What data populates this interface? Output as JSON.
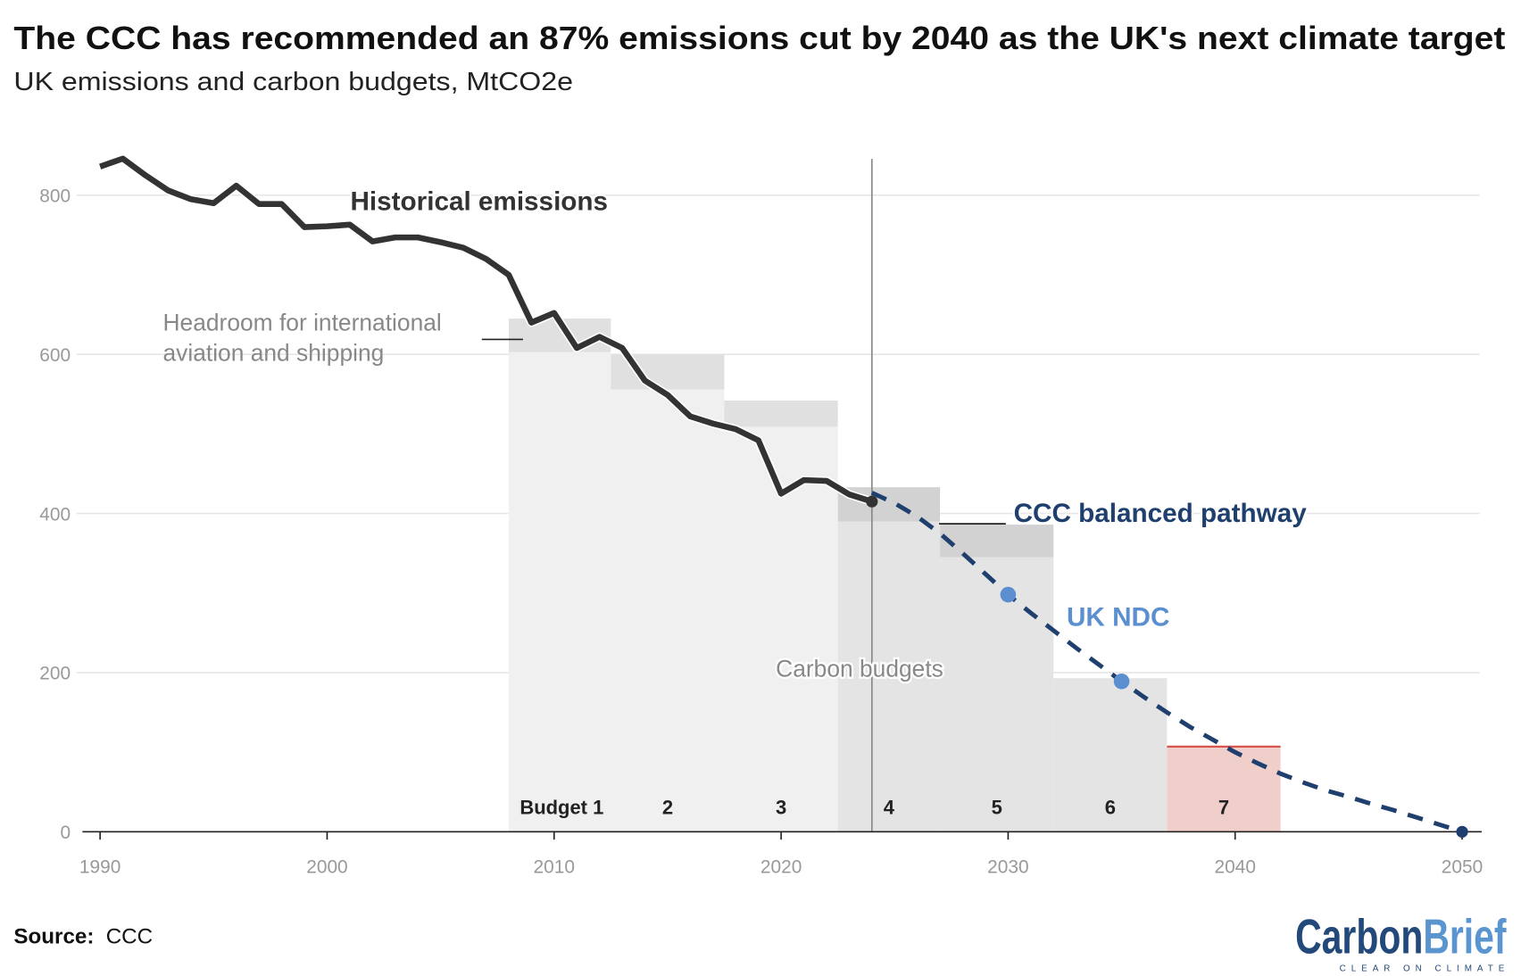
{
  "title": "The CCC has recommended an 87% emissions cut by 2040 as the UK's next climate target",
  "subtitle": "UK emissions and carbon budgets, MtCO2e",
  "source_label": "Source:",
  "source_value": "CCC",
  "logo": {
    "part1": "Carbon",
    "part2": "Brief",
    "tagline": "CLEAR ON CLIMATE",
    "color1": "#23497a",
    "color2": "#5b95cf"
  },
  "chart_data": {
    "type": "line",
    "title": "The CCC has recommended an 87% emissions cut by 2040 as the UK's next climate target",
    "xlabel": "",
    "ylabel": "",
    "xlim": [
      1990,
      2050
    ],
    "ylim": [
      0,
      850
    ],
    "grid": true,
    "x_ticks": [
      "1990",
      "2000",
      "2010",
      "2020",
      "2030",
      "2040",
      "2050"
    ],
    "y_ticks": [
      "0",
      "200",
      "400",
      "600",
      "800"
    ],
    "annotations": {
      "historical": "Historical emissions",
      "headroom": "Headroom for international aviation and shipping",
      "headroom_line1": "Headroom for international",
      "headroom_line2": "aviation and shipping",
      "carbon_budgets": "Carbon budgets",
      "pathway": "CCC balanced pathway",
      "ndc": "UK NDC"
    },
    "series": [
      {
        "name": "Historical emissions",
        "color": "#333333",
        "x": [
          1990,
          1991,
          1992,
          1993,
          1994,
          1995,
          1996,
          1997,
          1998,
          1999,
          2000,
          2001,
          2002,
          2003,
          2004,
          2005,
          2006,
          2007,
          2008,
          2009,
          2010,
          2011,
          2012,
          2013,
          2014,
          2015,
          2016,
          2017,
          2018,
          2019,
          2020,
          2021,
          2022,
          2023,
          2024
        ],
        "y": [
          836,
          846,
          825,
          806,
          795,
          790,
          812,
          789,
          789,
          760,
          761,
          763,
          742,
          747,
          747,
          741,
          734,
          720,
          700,
          640,
          652,
          608,
          622,
          608,
          567,
          549,
          522,
          513,
          506,
          492,
          425,
          442,
          441,
          424,
          415
        ]
      },
      {
        "name": "CCC balanced pathway",
        "color": "#1f3f6e",
        "style": "dashed",
        "x": [
          2024,
          2025,
          2026,
          2027,
          2028,
          2029,
          2030,
          2031,
          2032,
          2033,
          2034,
          2035,
          2036,
          2037,
          2038,
          2039,
          2040,
          2041,
          2042,
          2043,
          2044,
          2045,
          2046,
          2047,
          2048,
          2049,
          2050
        ],
        "y": [
          426,
          413,
          396,
          375,
          350,
          324,
          298,
          275,
          253,
          231,
          210,
          189,
          169,
          150,
          132,
          116,
          100,
          86,
          73,
          62,
          52,
          44,
          35,
          27,
          18,
          9,
          0
        ]
      }
    ],
    "ndc_points": {
      "color": "#5b8fcf",
      "x": [
        2030,
        2035
      ],
      "y": [
        298,
        189
      ]
    },
    "budget_labels": [
      "Budget 1",
      "2",
      "3",
      "4",
      "5",
      "6",
      "7"
    ],
    "budgets": [
      {
        "label": "Budget 1",
        "start": 2008,
        "end": 2012.5,
        "value": 603,
        "headroom_top": 645
      },
      {
        "label": "2",
        "start": 2012.5,
        "end": 2017.5,
        "value": 556,
        "headroom_top": 600
      },
      {
        "label": "3",
        "start": 2017.5,
        "end": 2022.5,
        "value": 509,
        "headroom_top": 542
      },
      {
        "label": "4",
        "start": 2022.5,
        "end": 2027,
        "value": 390,
        "headroom_top": 433
      },
      {
        "label": "5",
        "start": 2027,
        "end": 2032,
        "value": 345,
        "headroom_top": 386
      },
      {
        "label": "6",
        "start": 2032,
        "end": 2037,
        "value": 193,
        "headroom_top": 193
      },
      {
        "label": "7",
        "start": 2037,
        "end": 2042,
        "value": 107,
        "headroom_top": 107,
        "color": "#f0cfcb",
        "line_color": "#d9534f"
      }
    ],
    "current_year_marker": 2024
  }
}
